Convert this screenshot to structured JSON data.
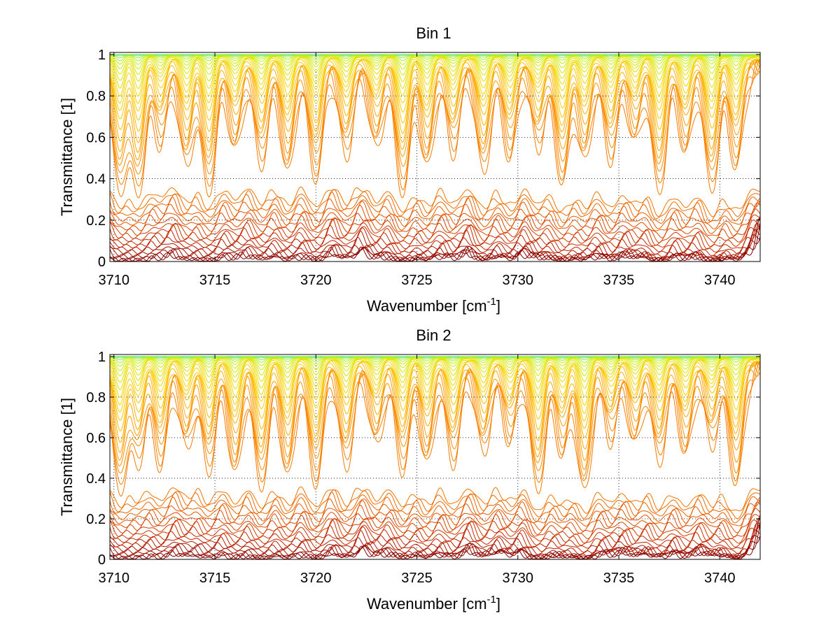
{
  "chart_data": [
    {
      "type": "line",
      "title": "Bin 1",
      "xlabel": "Wavenumber [cm",
      "xlabel_sup": "-1",
      "xlabel_close": "]",
      "ylabel": "Transmittance [1]",
      "xlim": [
        3709.8,
        3742
      ],
      "ylim": [
        0,
        1.01
      ],
      "xticks": [
        3710,
        3715,
        3720,
        3725,
        3730,
        3735,
        3740
      ],
      "xtick_labels": [
        "3710",
        "3715",
        "3720",
        "3725",
        "3730",
        "3735",
        "3740"
      ],
      "yticks": [
        0,
        0.2,
        0.4,
        0.6,
        0.8,
        1
      ],
      "ytick_labels": [
        "0",
        "0.2",
        "0.4",
        "0.6",
        "0.8",
        "1"
      ],
      "grid": "dotted",
      "absorption_lines": [
        3710.3,
        3711.2,
        3712.3,
        3713.6,
        3714.7,
        3716.0,
        3717.3,
        3718.6,
        3720.0,
        3721.5,
        3723.0,
        3724.3,
        3725.5,
        3726.8,
        3728.3,
        3729.6,
        3731.0,
        3732.2,
        3733.3,
        3734.6,
        3735.8,
        3737.0,
        3738.3,
        3739.6,
        3740.8
      ],
      "series_count": 40,
      "colors": [
        "#00a8ff",
        "#20e0c0",
        "#c8f000",
        "#ffd000",
        "#ff8c00",
        "#e85a00",
        "#c02000",
        "#800000"
      ]
    },
    {
      "type": "line",
      "title": "Bin 2",
      "xlabel": "Wavenumber [cm",
      "xlabel_sup": "-1",
      "xlabel_close": "]",
      "ylabel": "Transmittance [1]",
      "xlim": [
        3709.8,
        3742
      ],
      "ylim": [
        0,
        1.01
      ],
      "xticks": [
        3710,
        3715,
        3720,
        3725,
        3730,
        3735,
        3740
      ],
      "xtick_labels": [
        "3710",
        "3715",
        "3720",
        "3725",
        "3730",
        "3735",
        "3740"
      ],
      "yticks": [
        0,
        0.2,
        0.4,
        0.6,
        0.8,
        1
      ],
      "ytick_labels": [
        "0",
        "0.2",
        "0.4",
        "0.6",
        "0.8",
        "1"
      ],
      "grid": "dotted",
      "absorption_lines": [
        3710.3,
        3711.2,
        3712.3,
        3713.6,
        3714.7,
        3716.0,
        3717.3,
        3718.6,
        3720.0,
        3721.5,
        3723.0,
        3724.3,
        3725.5,
        3726.8,
        3728.3,
        3729.6,
        3731.0,
        3732.2,
        3733.3,
        3734.6,
        3735.8,
        3737.0,
        3738.3,
        3739.6,
        3740.8
      ],
      "series_count": 40,
      "colors": [
        "#00a8ff",
        "#20e0c0",
        "#c8f000",
        "#ffd000",
        "#ff8c00",
        "#e85a00",
        "#c02000",
        "#800000"
      ]
    }
  ]
}
